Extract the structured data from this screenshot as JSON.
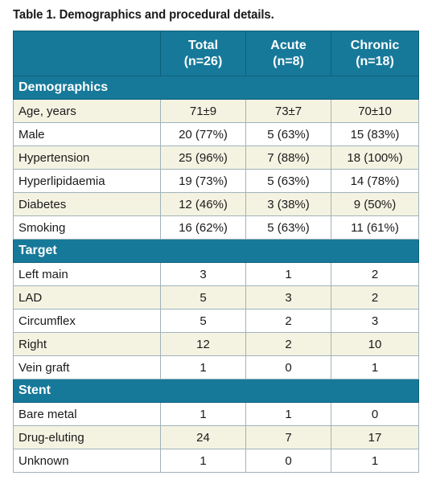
{
  "caption": "Table 1. Demographics and procedural details.",
  "header": {
    "col0": "",
    "cols": [
      {
        "name": "Total",
        "n": "(n=26)"
      },
      {
        "name": "Acute",
        "n": "(n=8)"
      },
      {
        "name": "Chronic",
        "n": "(n=18)"
      }
    ]
  },
  "colors": {
    "header_bg": "#17799a",
    "shaded_row_bg": "#f4f3e2"
  },
  "sections": [
    {
      "title": "Demographics",
      "rows": [
        {
          "label": "Age, years",
          "total": "71±9",
          "acute": "73±7",
          "chronic": "70±10",
          "shaded": true
        },
        {
          "label": "Male",
          "total": "20 (77%)",
          "acute": "5 (63%)",
          "chronic": "15 (83%)",
          "shaded": false
        },
        {
          "label": "Hypertension",
          "total": "25 (96%)",
          "acute": "7 (88%)",
          "chronic": "18 (100%)",
          "shaded": true
        },
        {
          "label": "Hyperlipidaemia",
          "total": "19 (73%)",
          "acute": "5 (63%)",
          "chronic": "14 (78%)",
          "shaded": false
        },
        {
          "label": "Diabetes",
          "total": "12 (46%)",
          "acute": "3 (38%)",
          "chronic": "9 (50%)",
          "shaded": true
        },
        {
          "label": "Smoking",
          "total": "16 (62%)",
          "acute": "5 (63%)",
          "chronic": "11 (61%)",
          "shaded": false
        }
      ]
    },
    {
      "title": "Target",
      "rows": [
        {
          "label": "Left main",
          "total": "3",
          "acute": "1",
          "chronic": "2",
          "shaded": false
        },
        {
          "label": "LAD",
          "total": "5",
          "acute": "3",
          "chronic": "2",
          "shaded": true
        },
        {
          "label": "Circumflex",
          "total": "5",
          "acute": "2",
          "chronic": "3",
          "shaded": false
        },
        {
          "label": "Right",
          "total": "12",
          "acute": "2",
          "chronic": "10",
          "shaded": true
        },
        {
          "label": "Vein graft",
          "total": "1",
          "acute": "0",
          "chronic": "1",
          "shaded": false
        }
      ]
    },
    {
      "title": "Stent",
      "rows": [
        {
          "label": "Bare metal",
          "total": "1",
          "acute": "1",
          "chronic": "0",
          "shaded": false
        },
        {
          "label": "Drug-eluting",
          "total": "24",
          "acute": "7",
          "chronic": "17",
          "shaded": true
        },
        {
          "label": "Unknown",
          "total": "1",
          "acute": "0",
          "chronic": "1",
          "shaded": false
        }
      ]
    }
  ]
}
